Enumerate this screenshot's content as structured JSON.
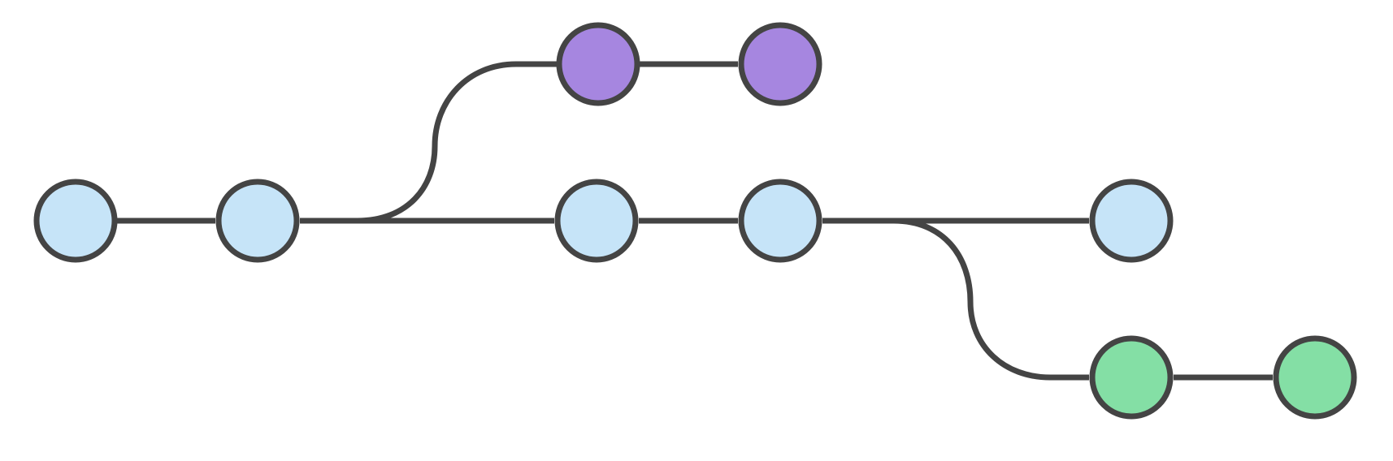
{
  "diagram": {
    "type": "git-branch-graph",
    "colors": {
      "stroke": "#444444",
      "main": "#c6e4f8",
      "feature_top": "#a686e0",
      "feature_bottom": "#84dfa5"
    },
    "branches": [
      {
        "id": "main",
        "color_key": "main",
        "commits": 5
      },
      {
        "id": "feature_top",
        "color_key": "feature_top",
        "commits": 2,
        "branches_from_commit": 2
      },
      {
        "id": "feature_bottom",
        "color_key": "feature_bottom",
        "commits": 2,
        "branches_from_commit": 4
      }
    ]
  }
}
